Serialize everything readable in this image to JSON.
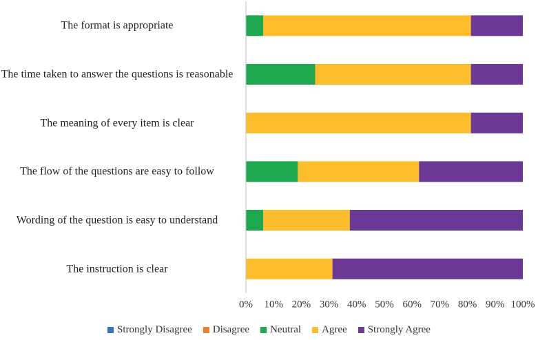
{
  "chart_data": {
    "type": "stacked-bar-horizontal",
    "categories": [
      "The format is appropriate",
      "The time taken to answer the questions is reasonable",
      "The meaning of every item is clear",
      "The flow of the questions are easy to follow",
      "Wording of the question is easy to understand",
      "The instruction is clear"
    ],
    "series": [
      {
        "name": "Strongly Disagree",
        "color": "#3b74c4",
        "values": [
          0,
          0,
          0,
          0,
          0,
          0
        ]
      },
      {
        "name": "Disagree",
        "color": "#ed7d31",
        "values": [
          0,
          0,
          0,
          0,
          0,
          0
        ]
      },
      {
        "name": "Neutral",
        "color": "#1fa84f",
        "values": [
          6.25,
          25,
          0,
          18.75,
          6.25,
          0
        ]
      },
      {
        "name": "Agree",
        "color": "#fbbd2c",
        "values": [
          75,
          56.25,
          81.25,
          43.75,
          31.25,
          31.25
        ]
      },
      {
        "name": "Strongly Agree",
        "color": "#6c3a96",
        "values": [
          18.75,
          18.75,
          18.75,
          37.5,
          62.5,
          68.75
        ]
      }
    ],
    "xlim": [
      0,
      100
    ],
    "xticks": [
      {
        "value": 0,
        "label": "0%"
      },
      {
        "value": 10,
        "label": "10%"
      },
      {
        "value": 20,
        "label": "20%"
      },
      {
        "value": 30,
        "label": "30%"
      },
      {
        "value": 40,
        "label": "40%"
      },
      {
        "value": 50,
        "label": "50%"
      },
      {
        "value": 60,
        "label": "60%"
      },
      {
        "value": 70,
        "label": "70%"
      },
      {
        "value": 80,
        "label": "80%"
      },
      {
        "value": 90,
        "label": "90%"
      },
      {
        "value": 100,
        "label": "100%"
      }
    ],
    "legend": "bottom"
  }
}
